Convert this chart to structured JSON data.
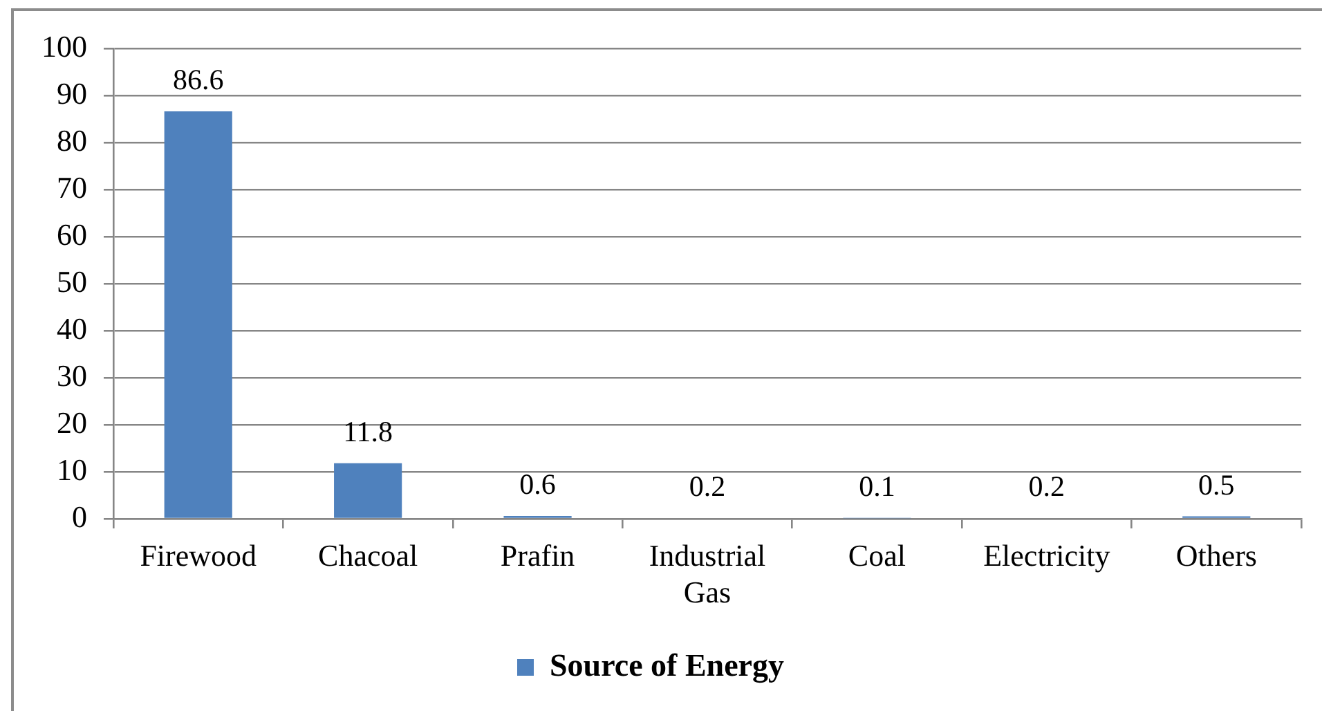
{
  "chart_data": {
    "type": "bar",
    "categories": [
      "Firewood",
      "Chacoal",
      "Prafin",
      "Industrial Gas",
      "Coal",
      "Electricity",
      "Others"
    ],
    "series": [
      {
        "name": "Source of Energy",
        "color": "#4f81bd",
        "values": [
          86.6,
          11.8,
          0.6,
          0.2,
          0.1,
          0.2,
          0.5
        ]
      }
    ],
    "ylim": [
      0,
      100
    ],
    "yticks": [
      0,
      10,
      20,
      30,
      40,
      50,
      60,
      70,
      80,
      90,
      100
    ],
    "grid": "y",
    "legend": "bottom",
    "data_labels": true
  }
}
